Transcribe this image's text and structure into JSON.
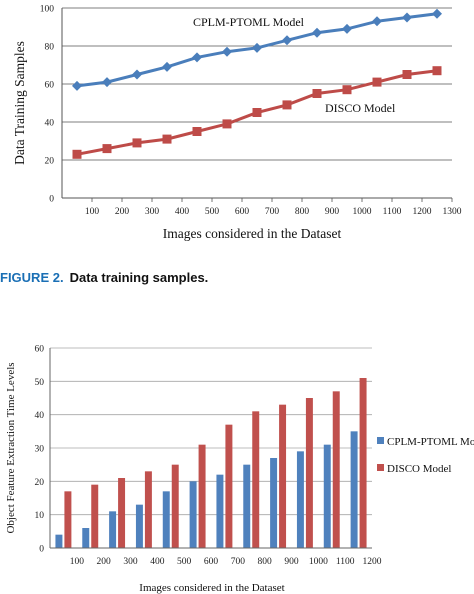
{
  "figure2": {
    "label": "FIGURE 2.",
    "caption": "Data training samples."
  },
  "colors": {
    "blue_line": "#4a7ebb",
    "red_line": "#be4b48",
    "bar_blue": "#4f81bd",
    "bar_red": "#c0504d",
    "grid": "#7f7f7f",
    "caption_accent": "#1a6fb5"
  },
  "chart_data": [
    {
      "type": "line",
      "title": "",
      "xlabel": "Images considered in the Dataset",
      "ylabel": "Data Training Samples",
      "xlim": [
        0,
        1300
      ],
      "ylim": [
        0,
        100
      ],
      "xticks": [
        100,
        200,
        300,
        400,
        500,
        600,
        700,
        800,
        900,
        1000,
        1100,
        1200,
        1300
      ],
      "yticks": [
        0,
        20,
        40,
        60,
        80,
        100
      ],
      "grid": true,
      "x": [
        50,
        150,
        250,
        350,
        450,
        550,
        650,
        750,
        850,
        950,
        1050,
        1150,
        1250
      ],
      "series": [
        {
          "name": "CPLM-PTOML Model",
          "marker": "diamond",
          "values": [
            59,
            61,
            65,
            69,
            74,
            77,
            79,
            83,
            87,
            89,
            93,
            95,
            97
          ]
        },
        {
          "name": "DISCO Model",
          "marker": "square",
          "values": [
            23,
            26,
            29,
            31,
            35,
            39,
            45,
            49,
            55,
            57,
            61,
            65,
            67
          ]
        }
      ]
    },
    {
      "type": "bar",
      "title": "",
      "xlabel": "Images considered in the Dataset",
      "ylabel": "Object Feature Extraction Time Levels",
      "ylim": [
        0,
        60
      ],
      "yticks": [
        0,
        10,
        20,
        30,
        40,
        50,
        60
      ],
      "xticks": [
        100,
        200,
        300,
        400,
        500,
        600,
        700,
        800,
        900,
        1000,
        1100,
        1200
      ],
      "grid": true,
      "legend_position": "right",
      "series": [
        {
          "name": "CPLM-PTOML Model",
          "values": [
            4,
            6,
            11,
            13,
            17,
            20,
            22,
            25,
            27,
            29,
            31,
            35
          ]
        },
        {
          "name": "DISCO Model",
          "values": [
            17,
            19,
            21,
            23,
            25,
            31,
            37,
            41,
            43,
            45,
            47,
            51
          ]
        }
      ]
    }
  ]
}
